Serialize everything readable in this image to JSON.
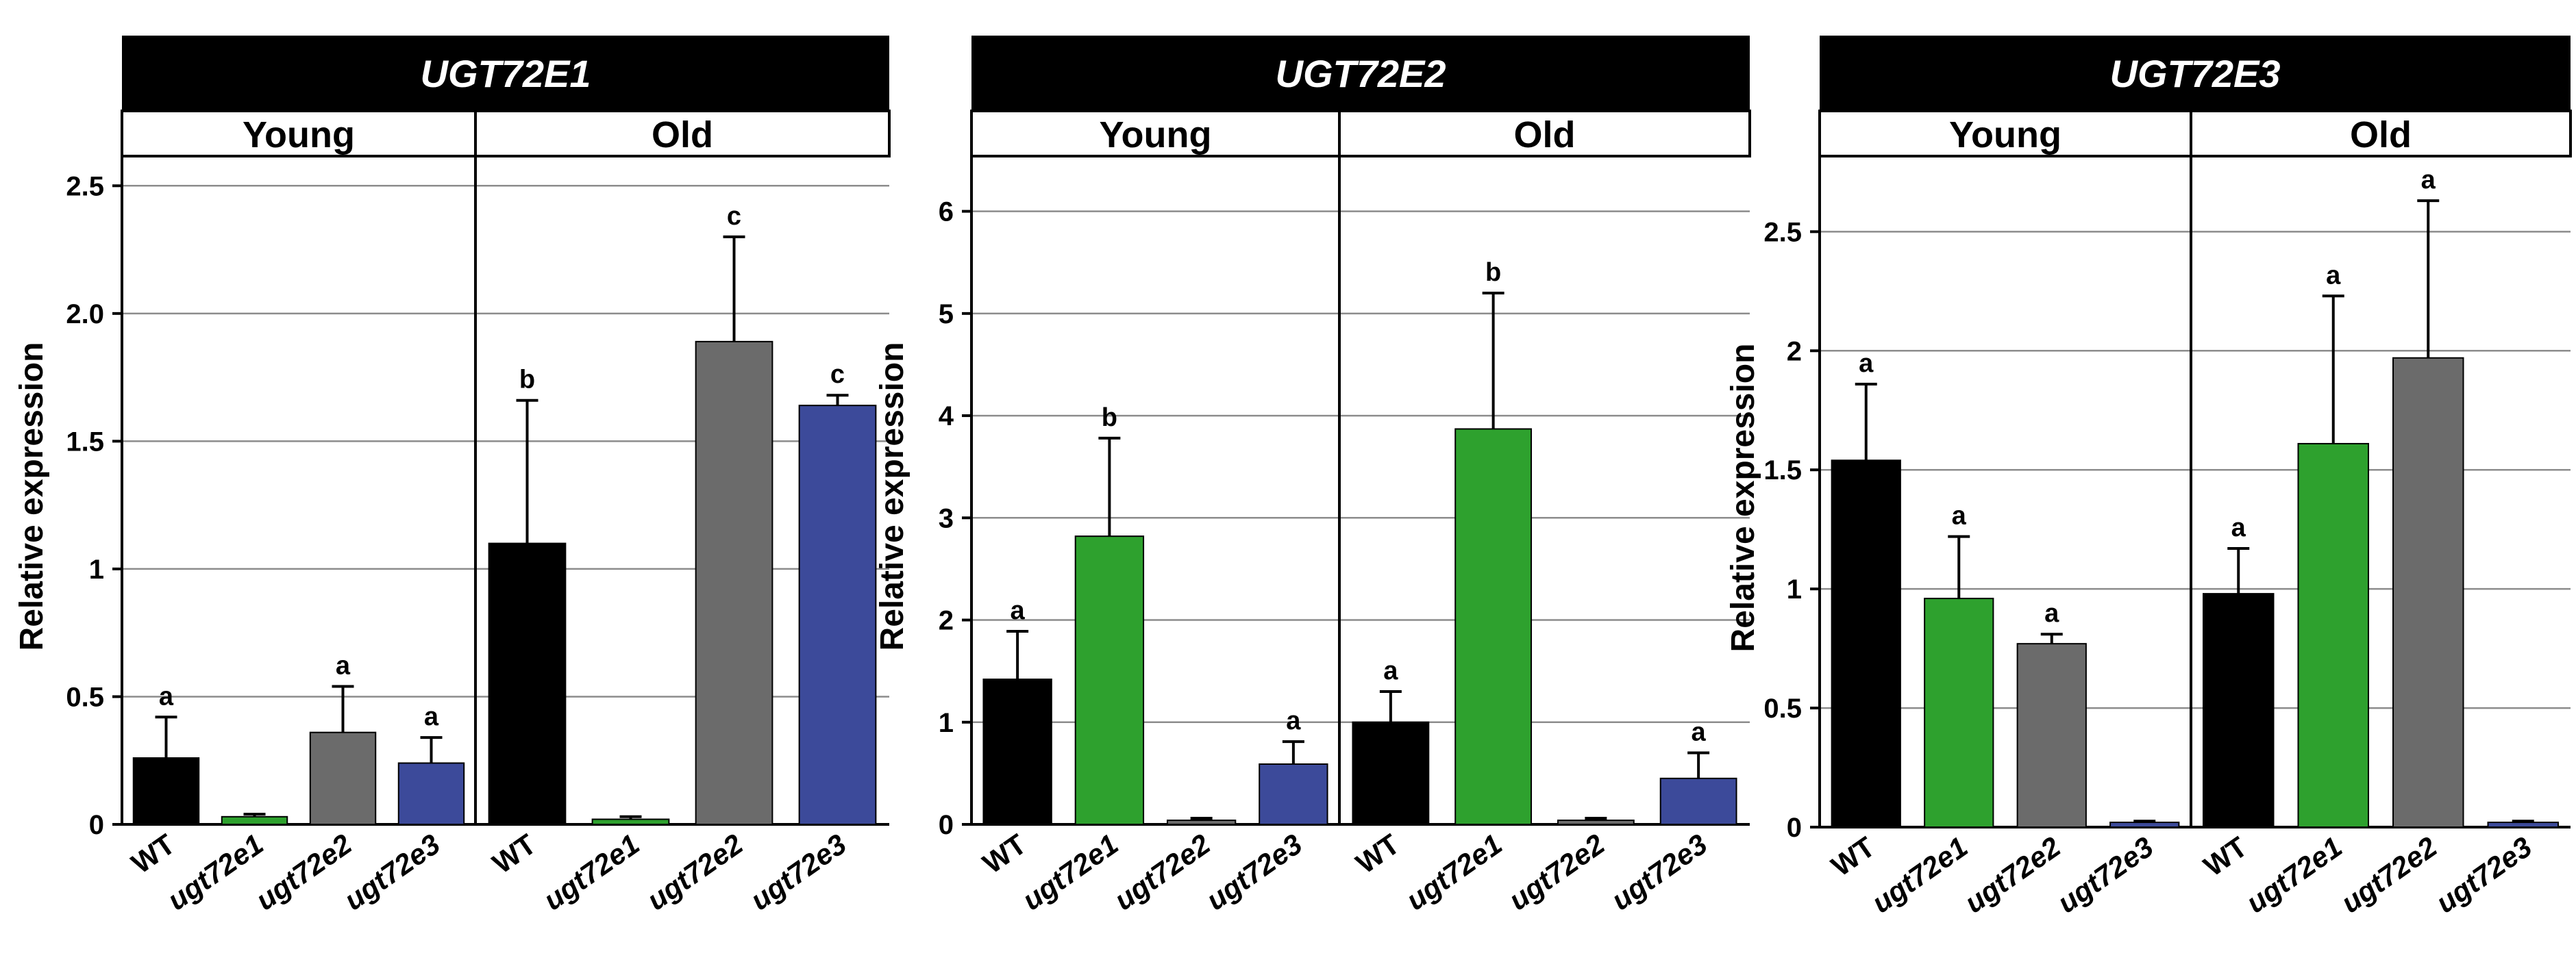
{
  "chart_data": [
    {
      "type": "bar",
      "title": "UGT72E1",
      "ylabel": "Relative expression",
      "ylim": [
        0,
        2.6
      ],
      "yticks": [
        0,
        0.5,
        1,
        1.5,
        2.0,
        2.5
      ],
      "ytick_labels": [
        "0",
        "0.5",
        "1",
        "1.5",
        "2.0",
        "2.5"
      ],
      "groups": [
        {
          "label": "Young",
          "bars": [
            {
              "genotype": "WT",
              "value": 0.26,
              "error": 0.16,
              "letter": "a"
            },
            {
              "genotype": "ugt72e1",
              "value": 0.03,
              "error": 0.01,
              "letter": ""
            },
            {
              "genotype": "ugt72e2",
              "value": 0.36,
              "error": 0.18,
              "letter": "a"
            },
            {
              "genotype": "ugt72e3",
              "value": 0.24,
              "error": 0.1,
              "letter": "a"
            }
          ]
        },
        {
          "label": "Old",
          "bars": [
            {
              "genotype": "WT",
              "value": 1.1,
              "error": 0.56,
              "letter": "b"
            },
            {
              "genotype": "ugt72e1",
              "value": 0.02,
              "error": 0.01,
              "letter": ""
            },
            {
              "genotype": "ugt72e2",
              "value": 1.89,
              "error": 0.41,
              "letter": "c"
            },
            {
              "genotype": "ugt72e3",
              "value": 1.64,
              "error": 0.04,
              "letter": "c"
            }
          ]
        }
      ]
    },
    {
      "type": "bar",
      "title": "UGT72E2",
      "ylabel": "Relative expression",
      "ylim": [
        0,
        6.5
      ],
      "yticks": [
        0,
        1,
        2,
        3,
        4,
        5,
        6
      ],
      "ytick_labels": [
        "0",
        "1",
        "2",
        "3",
        "4",
        "5",
        "6"
      ],
      "groups": [
        {
          "label": "Young",
          "bars": [
            {
              "genotype": "WT",
              "value": 1.42,
              "error": 0.47,
              "letter": "a"
            },
            {
              "genotype": "ugt72e1",
              "value": 2.82,
              "error": 0.96,
              "letter": "b"
            },
            {
              "genotype": "ugt72e2",
              "value": 0.04,
              "error": 0.02,
              "letter": ""
            },
            {
              "genotype": "ugt72e3",
              "value": 0.59,
              "error": 0.22,
              "letter": "a"
            }
          ]
        },
        {
          "label": "Old",
          "bars": [
            {
              "genotype": "WT",
              "value": 1.0,
              "error": 0.3,
              "letter": "a"
            },
            {
              "genotype": "ugt72e1",
              "value": 3.87,
              "error": 1.33,
              "letter": "b"
            },
            {
              "genotype": "ugt72e2",
              "value": 0.04,
              "error": 0.02,
              "letter": ""
            },
            {
              "genotype": "ugt72e3",
              "value": 0.45,
              "error": 0.25,
              "letter": "a"
            }
          ]
        }
      ]
    },
    {
      "type": "bar",
      "title": "UGT72E3",
      "ylabel": "Relative expression",
      "ylim": [
        0,
        2.8
      ],
      "yticks": [
        0,
        0.5,
        1,
        1.5,
        2,
        2.5
      ],
      "ytick_labels": [
        "0",
        "0.5",
        "1",
        "1.5",
        "2",
        "2.5"
      ],
      "groups": [
        {
          "label": "Young",
          "bars": [
            {
              "genotype": "WT",
              "value": 1.54,
              "error": 0.32,
              "letter": "a"
            },
            {
              "genotype": "ugt72e1",
              "value": 0.96,
              "error": 0.26,
              "letter": "a"
            },
            {
              "genotype": "ugt72e2",
              "value": 0.77,
              "error": 0.04,
              "letter": "a"
            },
            {
              "genotype": "ugt72e3",
              "value": 0.02,
              "error": 0.005,
              "letter": ""
            }
          ]
        },
        {
          "label": "Old",
          "bars": [
            {
              "genotype": "WT",
              "value": 0.98,
              "error": 0.19,
              "letter": "a"
            },
            {
              "genotype": "ugt72e1",
              "value": 1.61,
              "error": 0.62,
              "letter": "a"
            },
            {
              "genotype": "ugt72e2",
              "value": 1.97,
              "error": 0.66,
              "letter": "a"
            },
            {
              "genotype": "ugt72e3",
              "value": 0.02,
              "error": 0.005,
              "letter": ""
            }
          ]
        }
      ]
    }
  ],
  "colors": {
    "WT": "#000000",
    "ugt72e1": "#2ea12e",
    "ugt72e2": "#6b6b6b",
    "ugt72e3": "#3c4a9a",
    "title_bar": "#000000",
    "title_text": "#ffffff",
    "gridline": "#8c8c8c"
  }
}
